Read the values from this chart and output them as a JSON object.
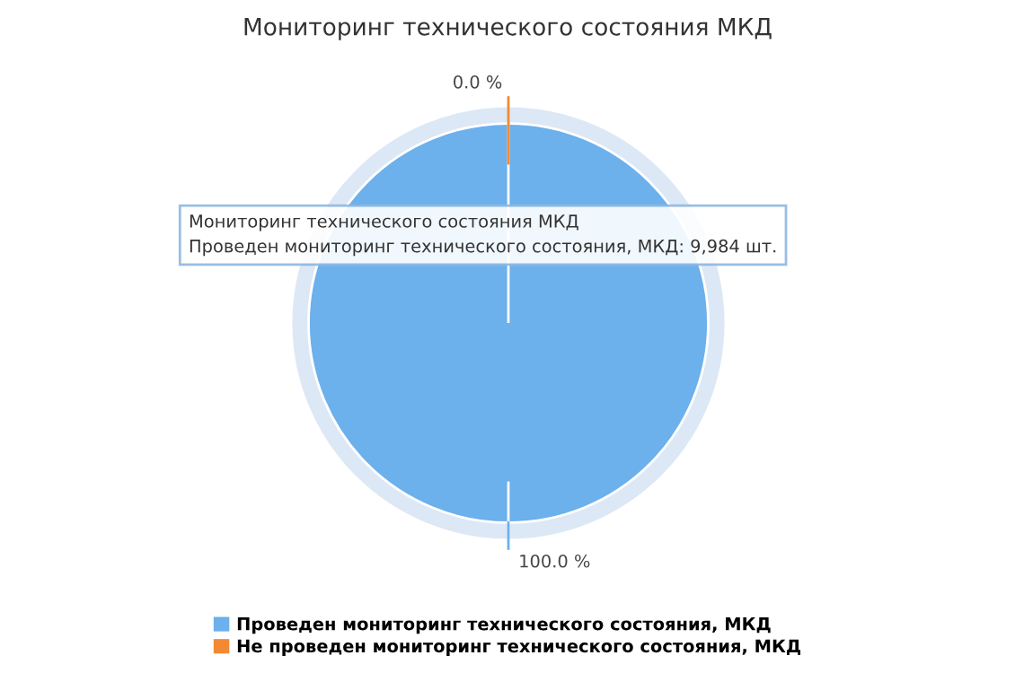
{
  "chart_data": {
    "type": "pie",
    "title": "Мониторинг технического состояния МКД",
    "categories": [
      "Проведен мониторинг технического состояния, МКД",
      "Не проведен мониторинг технического состояния, МКД"
    ],
    "values": [
      100,
      0
    ],
    "colors": [
      "#6cb0ec",
      "#f28a33"
    ],
    "value_labels": [
      "100.0 %",
      "0.0 %"
    ],
    "legend": "bottom",
    "annotations": [
      "Мониторинг технического состояния МКД",
      "Проведен мониторинг технического состояния, МКД: 9,984 шт."
    ]
  }
}
